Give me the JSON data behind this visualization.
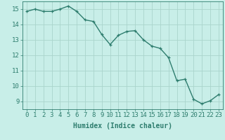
{
  "x": [
    0,
    1,
    2,
    3,
    4,
    5,
    6,
    7,
    8,
    9,
    10,
    11,
    12,
    13,
    14,
    15,
    16,
    17,
    18,
    19,
    20,
    21,
    22,
    23
  ],
  "y": [
    14.85,
    15.0,
    14.85,
    14.85,
    15.0,
    15.2,
    14.85,
    14.3,
    14.2,
    13.35,
    12.7,
    13.3,
    13.55,
    13.6,
    13.0,
    12.6,
    12.45,
    11.85,
    10.35,
    10.45,
    9.15,
    8.85,
    9.05,
    9.45
  ],
  "line_color": "#2e7d6e",
  "marker": "+",
  "marker_color": "#2e7d6e",
  "bg_color": "#c8eee8",
  "grid_color": "#aad4cc",
  "axis_color": "#2e7d6e",
  "xlabel": "Humidex (Indice chaleur)",
  "xlim": [
    -0.5,
    23.5
  ],
  "ylim": [
    8.5,
    15.5
  ],
  "yticks": [
    9,
    10,
    11,
    12,
    13,
    14,
    15
  ],
  "xticks": [
    0,
    1,
    2,
    3,
    4,
    5,
    6,
    7,
    8,
    9,
    10,
    11,
    12,
    13,
    14,
    15,
    16,
    17,
    18,
    19,
    20,
    21,
    22,
    23
  ],
  "xlabel_fontsize": 7,
  "tick_fontsize": 6.5,
  "tick_color": "#2e7d6e",
  "linewidth": 1.0,
  "markersize": 3.5
}
